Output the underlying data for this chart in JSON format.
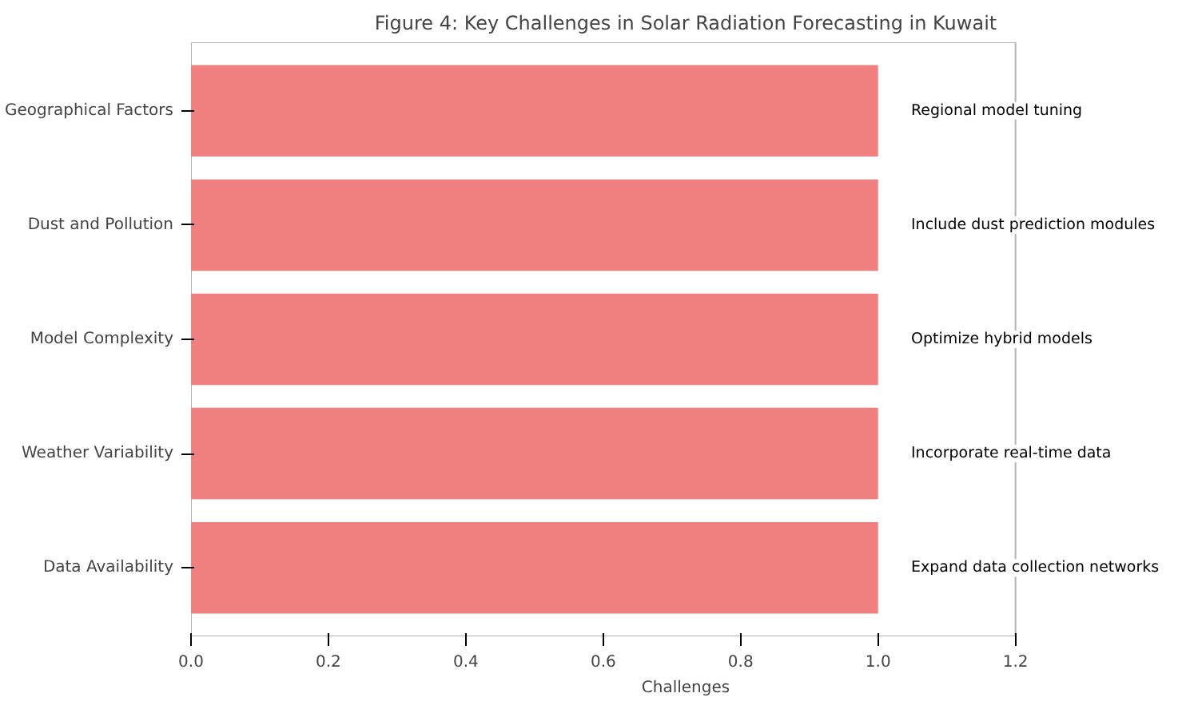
{
  "chart_data": {
    "type": "bar",
    "orientation": "horizontal",
    "title": "Figure 4: Key Challenges in Solar Radiation Forecasting in Kuwait",
    "xlabel": "Challenges",
    "categories": [
      "Geographical Factors",
      "Dust and Pollution",
      "Model Complexity",
      "Weather Variability",
      "Data Availability"
    ],
    "values": [
      1.0,
      1.0,
      1.0,
      1.0,
      1.0
    ],
    "color": "#f08080",
    "xlim": [
      0,
      1.2
    ],
    "xticks": [
      {
        "value": 0,
        "label": "0.0"
      },
      {
        "value": 0.2,
        "label": "0.2"
      },
      {
        "value": 0.4,
        "label": "0.4"
      },
      {
        "value": 0.6,
        "label": "0.6"
      },
      {
        "value": 0.8,
        "label": "0.8"
      },
      {
        "value": 1.0,
        "label": "1.0"
      },
      {
        "value": 1.2,
        "label": "1.2"
      }
    ],
    "annotations": [
      "Regional model tuning",
      "Include dust prediction modules",
      "Optimize hybrid models",
      "Incorporate real-time data",
      "Expand data collection networks"
    ],
    "grid": false
  }
}
